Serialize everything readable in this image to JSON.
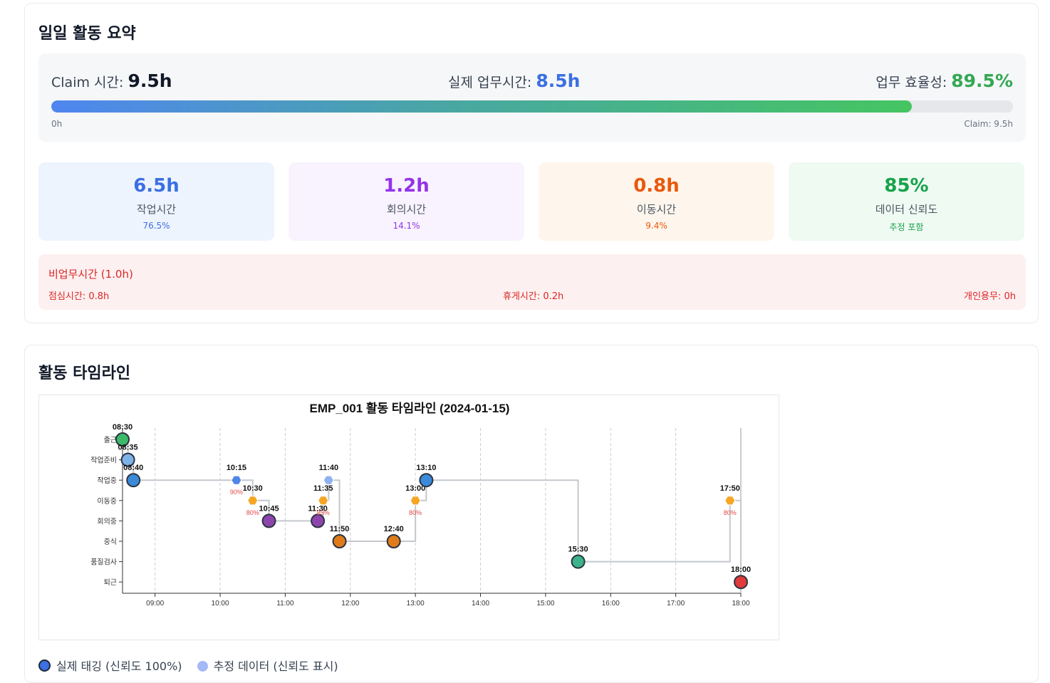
{
  "summary": {
    "title": "일일 활동 요약",
    "claim_label": "Claim 시간:",
    "claim_value": "9.5h",
    "actual_label": "실제 업무시간:",
    "actual_value": "8.5h",
    "efficiency_label": "업무 효율성:",
    "efficiency_value": "89.5%",
    "progress_fraction": 0.895,
    "bar_min": "0h",
    "bar_max": "Claim: 9.5h",
    "metrics": [
      {
        "value": "6.5h",
        "label": "작업시간",
        "sub": "76.5%"
      },
      {
        "value": "1.2h",
        "label": "회의시간",
        "sub": "14.1%"
      },
      {
        "value": "0.8h",
        "label": "이동시간",
        "sub": "9.4%"
      },
      {
        "value": "85%",
        "label": "데이터 신뢰도",
        "sub": "추정 포함"
      }
    ],
    "nonwork": {
      "title": "비업무시간 (1.0h)",
      "lunch": "점심시간: 0.8h",
      "break": "휴게시간: 0.2h",
      "personal": "개인용무: 0h"
    }
  },
  "timeline": {
    "title": "활동 타임라인",
    "legend_real": "실제 태깅 (신뢰도 100%)",
    "legend_estimated": "추정 데이터 (신뢰도 표시)"
  },
  "colors": {
    "actual_blue": "#3b6fe3",
    "efficiency_green": "#34a853",
    "estimated_orange": "#f5a623",
    "line_gray": "#c4c8cd"
  },
  "chart_data": {
    "type": "scatter",
    "title": "EMP_001 활동 타임라인 (2024-01-15)",
    "x_ticks": [
      "09:00",
      "10:00",
      "11:00",
      "12:00",
      "13:00",
      "14:00",
      "15:00",
      "16:00",
      "17:00",
      "18:00"
    ],
    "xlim": [
      "08:30",
      "18:00"
    ],
    "categories": [
      "출근",
      "작업준비",
      "작업중",
      "이동중",
      "회의중",
      "중식",
      "품질검사",
      "퇴근"
    ],
    "grid": "vertical dashed",
    "points": [
      {
        "time": "08:30",
        "category": "출근",
        "kind": "actual",
        "color": "#3cba6a"
      },
      {
        "time": "08:35",
        "category": "작업준비",
        "kind": "actual",
        "color": "#7fb3e8"
      },
      {
        "time": "08:40",
        "category": "작업중",
        "kind": "actual",
        "color": "#3b8ad9"
      },
      {
        "time": "10:15",
        "category": "작업중",
        "kind": "estimated",
        "color": "#4f86e8",
        "confidence": "90%"
      },
      {
        "time": "10:30",
        "category": "이동중",
        "kind": "estimated",
        "color": "#f5a623",
        "confidence": "80%"
      },
      {
        "time": "10:45",
        "category": "회의중",
        "kind": "actual",
        "color": "#8e44ad"
      },
      {
        "time": "11:30",
        "category": "회의중",
        "kind": "actual",
        "color": "#8e44ad"
      },
      {
        "time": "11:35",
        "category": "이동중",
        "kind": "estimated",
        "color": "#f5a623",
        "confidence": "85%"
      },
      {
        "time": "11:40",
        "category": "작업중",
        "kind": "estimated",
        "color": "#8fb0f2"
      },
      {
        "time": "11:50",
        "category": "중식",
        "kind": "actual",
        "color": "#e07b1a"
      },
      {
        "time": "12:40",
        "category": "중식",
        "kind": "actual",
        "color": "#e07b1a"
      },
      {
        "time": "13:00",
        "category": "이동중",
        "kind": "estimated",
        "color": "#f5a623",
        "confidence": "80%"
      },
      {
        "time": "13:10",
        "category": "작업중",
        "kind": "actual",
        "color": "#3b8ad9"
      },
      {
        "time": "15:30",
        "category": "품질검사",
        "kind": "actual",
        "color": "#3cb38a"
      },
      {
        "time": "17:50",
        "category": "이동중",
        "kind": "estimated",
        "color": "#f5a623",
        "confidence": "80%"
      },
      {
        "time": "18:00",
        "category": "퇴근",
        "kind": "actual",
        "color": "#e03a3a"
      }
    ]
  }
}
